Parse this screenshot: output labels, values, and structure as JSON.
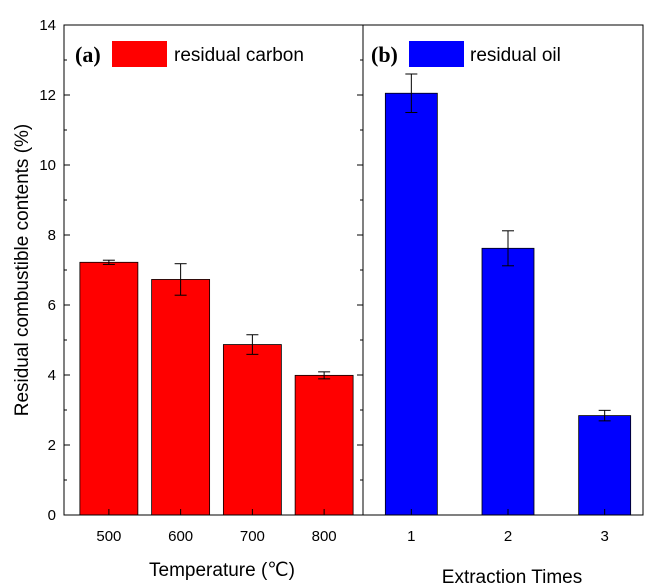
{
  "chart_data": [
    {
      "panel": "(a)",
      "type": "bar",
      "categories": [
        "500",
        "600",
        "700",
        "800"
      ],
      "series": [
        {
          "name": "residual carbon",
          "values": [
            7.22,
            6.73,
            4.87,
            3.99
          ],
          "errors": [
            0.06,
            0.45,
            0.28,
            0.1
          ],
          "color": "#ff0000"
        }
      ],
      "xlabel": "Temperature (℃)",
      "ylabel": "Residual combustible contents (%)",
      "ylim": [
        0,
        14
      ],
      "yticks": [
        "0",
        "2",
        "4",
        "6",
        "8",
        "10",
        "12",
        "14"
      ],
      "legend_position": "top-left"
    },
    {
      "panel": "(b)",
      "type": "bar",
      "categories": [
        "1",
        "2",
        "3"
      ],
      "series": [
        {
          "name": "residual oil",
          "values": [
            12.05,
            7.62,
            2.84
          ],
          "errors": [
            0.55,
            0.5,
            0.15
          ],
          "color": "#0000ff"
        }
      ],
      "xlabel": "Extraction Times",
      "ylim": [
        0,
        14
      ],
      "legend_position": "top-left"
    }
  ]
}
